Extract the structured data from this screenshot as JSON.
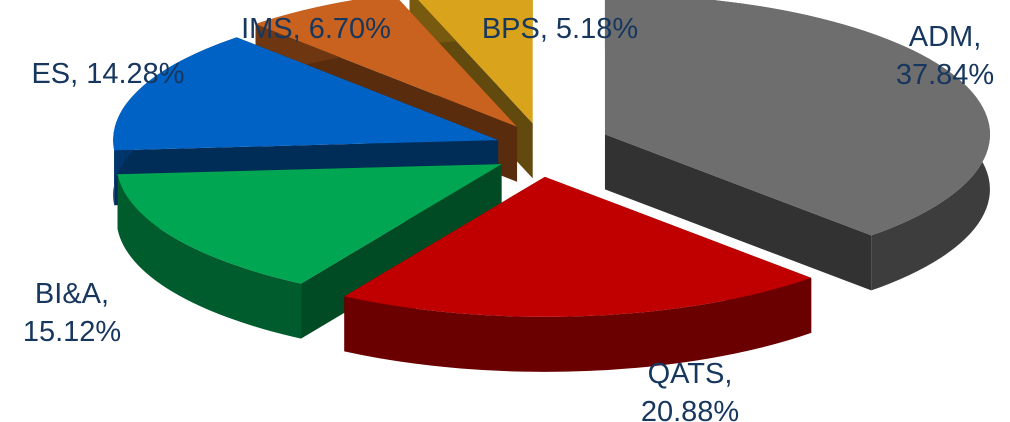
{
  "chart_data": {
    "type": "pie",
    "categories": [
      "ADM",
      "QATS",
      "BI&A",
      "ES",
      "IMS",
      "BPS"
    ],
    "values": [
      37.84,
      20.88,
      15.12,
      14.28,
      6.7,
      5.18
    ],
    "value_labels": [
      "37.84%",
      "20.88%",
      "15.12%",
      "14.28%",
      "6.70%",
      "5.18%"
    ],
    "colors": [
      "#6e6e6e",
      "#c00000",
      "#00a651",
      "#0062c4",
      "#c8621e",
      "#d9a31c"
    ]
  }
}
